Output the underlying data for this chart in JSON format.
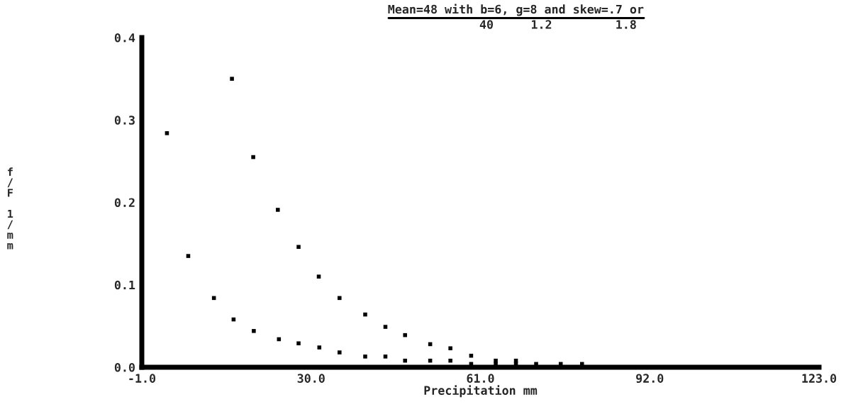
{
  "chart_data": {
    "type": "scatter",
    "title": "Mean=48 with b=6, g=8 and skew=.7 or",
    "annotations": [
      "40",
      "1.2",
      "1.8"
    ],
    "xlabel": "Precipitation mm",
    "ylabel": "f/F 1/mm",
    "xlim": [
      -1,
      123
    ],
    "xticks": [
      {
        "value": -1,
        "label": "-1.0"
      },
      {
        "value": 30,
        "label": "30.0"
      },
      {
        "value": 61,
        "label": "61.0"
      },
      {
        "value": 92,
        "label": "92.0"
      },
      {
        "value": 123,
        "label": "123.0"
      }
    ],
    "ylim": [
      0,
      0.4
    ],
    "yticks": [
      {
        "value": 0,
        "label": "0.0"
      },
      {
        "value": 0.1,
        "label": "0.1"
      },
      {
        "value": 0.2,
        "label": "0.2"
      },
      {
        "value": 0.3,
        "label": "0.3"
      },
      {
        "value": 0.4,
        "label": "0.4"
      }
    ],
    "marker": "square",
    "grid": false,
    "legend": false,
    "series": [
      {
        "color": "#000000",
        "x": [
          3.6,
          7.5,
          12.2,
          15.8,
          19.5,
          24.1,
          27.7,
          31.5,
          35.2,
          39.9,
          43.6,
          47.2,
          51.8,
          55.5,
          59.3,
          63.8,
          67.5
        ],
        "values": [
          0.284,
          0.135,
          0.084,
          0.058,
          0.044,
          0.034,
          0.029,
          0.024,
          0.018,
          0.013,
          0.013,
          0.008,
          0.008,
          0.008,
          0.004,
          0.004,
          0.004
        ]
      },
      {
        "color": "#000000",
        "x": [
          15.5,
          19.4,
          23.9,
          27.7,
          31.4,
          35.2,
          39.9,
          43.6,
          47.2,
          51.8,
          55.5,
          59.3,
          63.8,
          67.5,
          71.2,
          75.7,
          79.6
        ],
        "values": [
          0.35,
          0.255,
          0.191,
          0.146,
          0.11,
          0.084,
          0.064,
          0.049,
          0.039,
          0.028,
          0.023,
          0.014,
          0.008,
          0.008,
          0.004,
          0.004,
          0.004
        ]
      }
    ]
  }
}
